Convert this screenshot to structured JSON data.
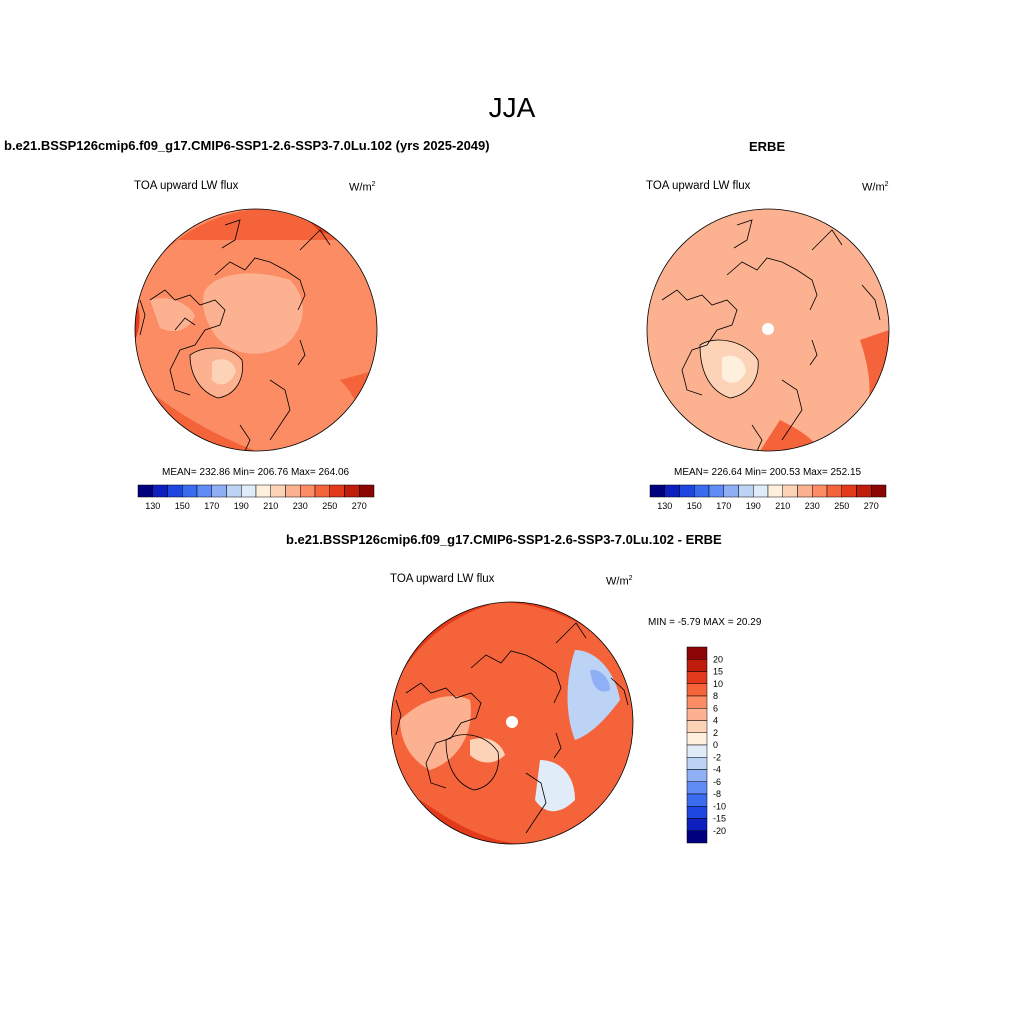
{
  "figure": {
    "title": "JJA",
    "panels": [
      {
        "title": "b.e21.BSSP126cmip6.f09_g17.CMIP6-SSP1-2.6-SSP3-7.0Lu.102 (yrs 2025-2049)",
        "variable": "TOA upward LW flux",
        "units_base": "W/m",
        "units_exp": "2",
        "stats": "MEAN= 232.86  Min= 206.76  Max= 264.06"
      },
      {
        "title": "ERBE",
        "variable": "TOA upward LW flux",
        "units_base": "W/m",
        "units_exp": "2",
        "stats": "MEAN= 226.64  Min= 200.53  Max= 252.15"
      },
      {
        "title": "b.e21.BSSP126cmip6.f09_g17.CMIP6-SSP1-2.6-SSP3-7.0Lu.102 - ERBE",
        "variable": "TOA upward LW flux",
        "units_base": "W/m",
        "units_exp": "2",
        "stats": "MIN =  -5.79 MAX =  20.29"
      }
    ]
  },
  "colorbar_abs": {
    "colors": [
      "#00007f",
      "#0d1fbf",
      "#1e46e0",
      "#3a6cf0",
      "#5f8df5",
      "#8fb0f7",
      "#bcd3f5",
      "#e0ecf8",
      "#fff0dd",
      "#fdd3b8",
      "#fcb190",
      "#fb8c63",
      "#f5633a",
      "#e23a1a",
      "#c01c0b",
      "#8b0505"
    ],
    "labels": [
      "130",
      "150",
      "170",
      "190",
      "210",
      "230",
      "250",
      "270"
    ]
  },
  "colorbar_diff": {
    "colors": [
      "#00007f",
      "#0d1fbf",
      "#1e46e0",
      "#3a6cf0",
      "#5f8df5",
      "#8fb0f7",
      "#bcd3f5",
      "#e0ecf8",
      "#fff0dd",
      "#fdd3b8",
      "#fcb190",
      "#fb8c63",
      "#f5633a",
      "#e23a1a",
      "#c01c0b",
      "#8b0505"
    ],
    "labels": [
      "-20",
      "-15",
      "-10",
      "-8",
      "-6",
      "-4",
      "-2",
      "0",
      "2",
      "4",
      "6",
      "8",
      "10",
      "15",
      "20"
    ]
  },
  "colors": {
    "panel1_base": "#fb8c63",
    "panel2_base": "#fcb190",
    "panel3_base": "#f5633a",
    "outline": "#000000"
  }
}
